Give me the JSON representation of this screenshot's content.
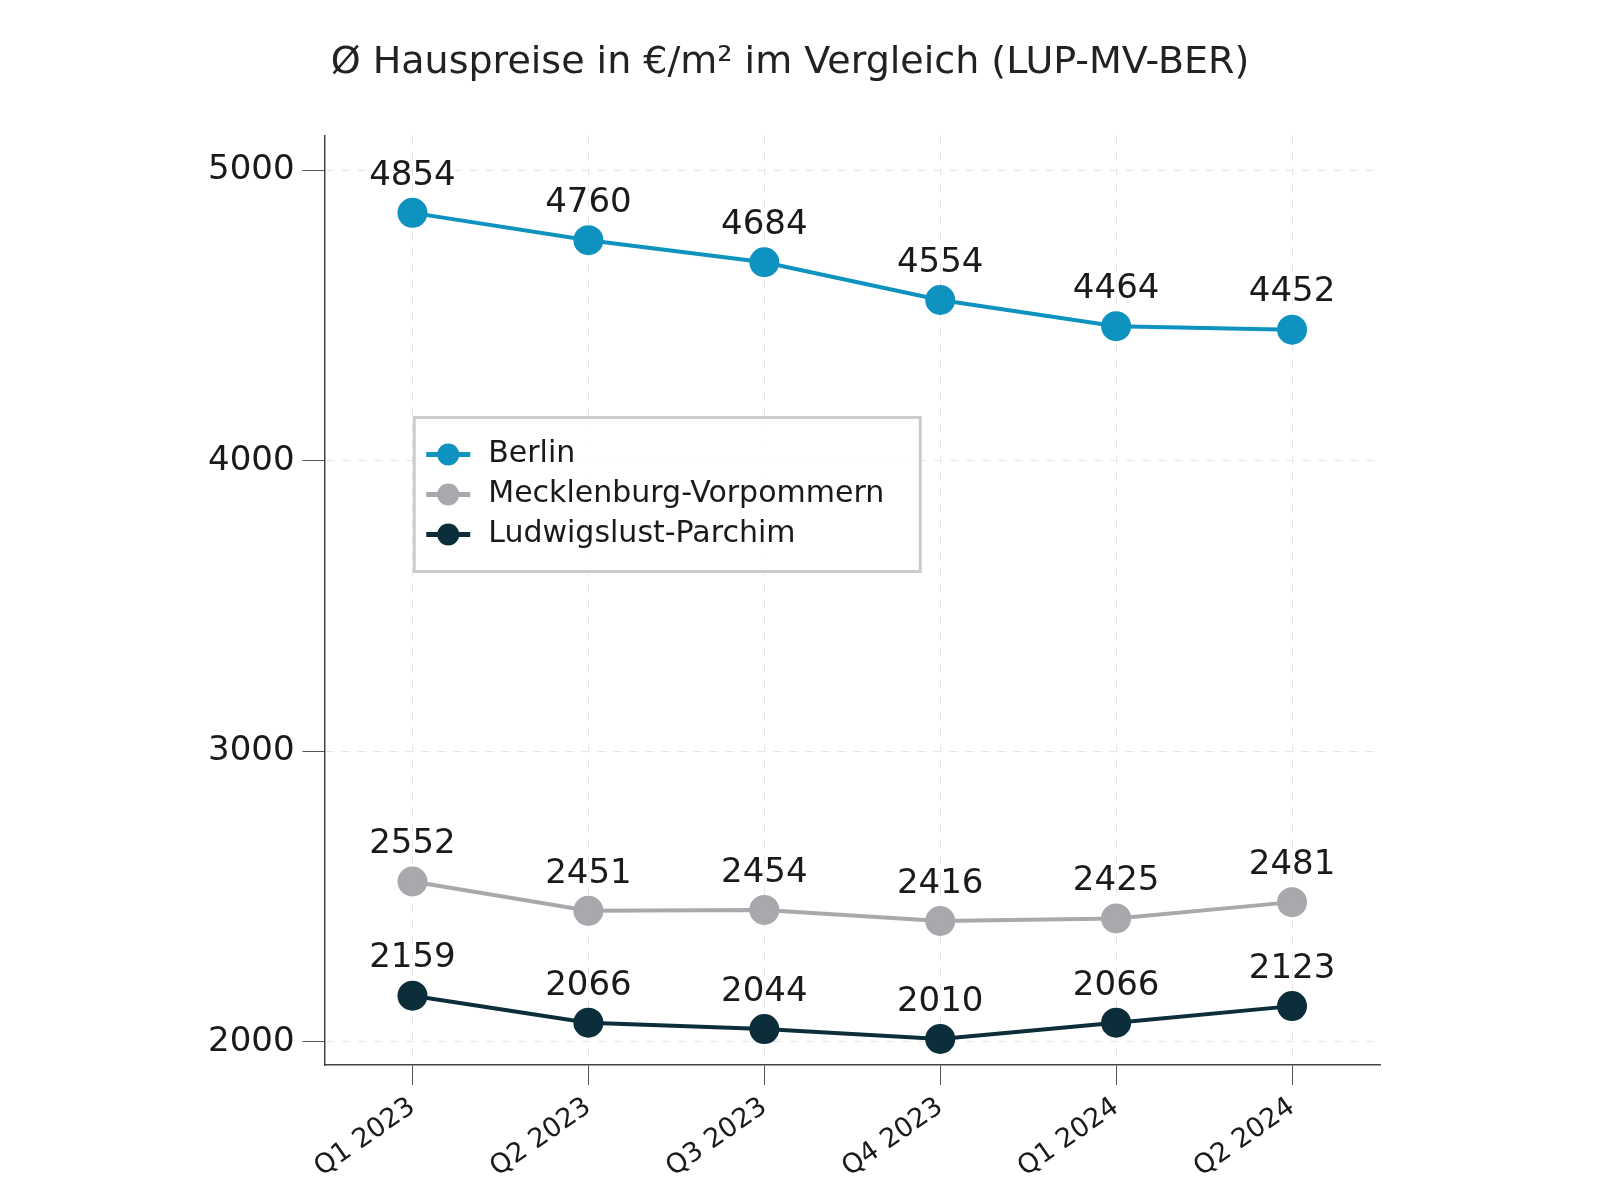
{
  "chart_data": {
    "type": "line",
    "title": "Ø Hauspreise in €/m² im Vergleich (LUP-MV-BER)",
    "categories": [
      "Q1 2023",
      "Q2 2023",
      "Q3 2023",
      "Q4 2023",
      "Q1 2024",
      "Q2 2024"
    ],
    "series": [
      {
        "name": "Berlin",
        "color": "#0e93c0",
        "values": [
          4854,
          4760,
          4684,
          4554,
          4464,
          4452
        ]
      },
      {
        "name": "Mecklenburg-Vorpommern",
        "color": "#a7a9ad",
        "values": [
          2552,
          2451,
          2454,
          2416,
          2425,
          2481
        ]
      },
      {
        "name": "Ludwigslust-Parchim",
        "color": "#0b2e3a",
        "values": [
          2159,
          2066,
          2044,
          2010,
          2066,
          2123
        ]
      }
    ],
    "ylim": [
      1920,
      5120
    ],
    "yticks": [
      2000,
      3000,
      4000,
      5000
    ],
    "grid": true,
    "legend": "center left",
    "data_labels": true,
    "marker": "circle",
    "line_style": "solid"
  }
}
